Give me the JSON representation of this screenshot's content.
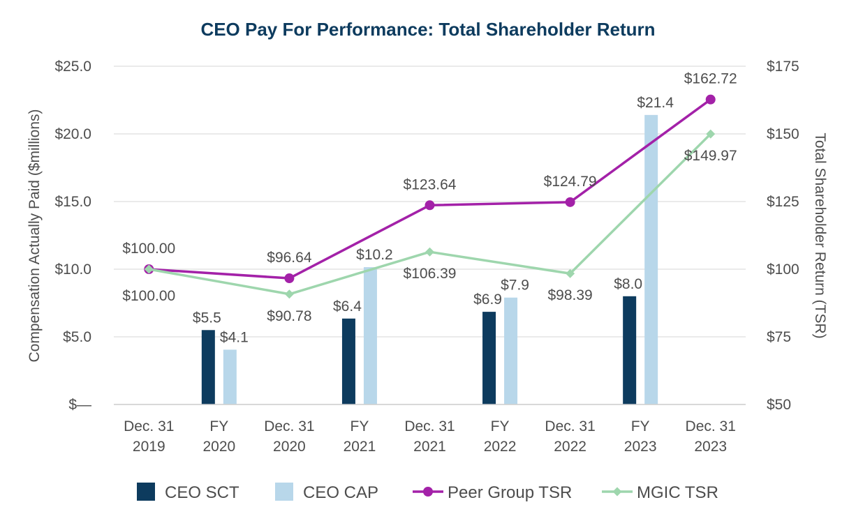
{
  "chart_data": {
    "type": "bar+line",
    "title": "CEO Pay For Performance: Total Shareholder Return",
    "ylabel_left": "Compensation Actually Paid ($millions)",
    "ylabel_right": "Total Shareholder Return (TSR)",
    "ylim_left": [
      0,
      25
    ],
    "ylim_right": [
      50,
      175
    ],
    "yticks_left": [
      "$—",
      "$5.0",
      "$10.0",
      "$15.0",
      "$20.0",
      "$25.0"
    ],
    "yticks_right": [
      "$50",
      "$75",
      "$100",
      "$125",
      "$150",
      "$175"
    ],
    "grid": true,
    "categories": [
      [
        "Dec. 31",
        "2019"
      ],
      [
        "FY",
        "2020"
      ],
      [
        "Dec. 31",
        "2020"
      ],
      [
        "FY",
        "2021"
      ],
      [
        "Dec. 31",
        "2021"
      ],
      [
        "FY",
        "2022"
      ],
      [
        "Dec. 31",
        "2022"
      ],
      [
        "FY",
        "2023"
      ],
      [
        "Dec. 31",
        "2023"
      ]
    ],
    "bar_series": [
      {
        "name": "CEO SCT",
        "color": "#0d3b5e",
        "points": [
          {
            "category_index": 1,
            "value": 5.5,
            "label": "$5.5"
          },
          {
            "category_index": 3,
            "value": 6.35,
            "label": "$6.4"
          },
          {
            "category_index": 5,
            "value": 6.85,
            "label": "$6.9"
          },
          {
            "category_index": 7,
            "value": 8.0,
            "label": "$8.0"
          }
        ]
      },
      {
        "name": "CEO CAP",
        "color": "#b8d7ea",
        "points": [
          {
            "category_index": 1,
            "value": 4.05,
            "label": "$4.1"
          },
          {
            "category_index": 3,
            "value": 10.15,
            "label": "$10.2"
          },
          {
            "category_index": 5,
            "value": 7.9,
            "label": "$7.9"
          },
          {
            "category_index": 7,
            "value": 21.4,
            "label": "$21.4"
          }
        ]
      }
    ],
    "line_series": [
      {
        "name": "Peer Group TSR",
        "color": "#a321a8",
        "marker": "circle",
        "points": [
          {
            "category_index": 0,
            "value": 100.0,
            "label": "$100.00"
          },
          {
            "category_index": 2,
            "value": 96.64,
            "label": "$96.64"
          },
          {
            "category_index": 4,
            "value": 123.64,
            "label": "$123.64"
          },
          {
            "category_index": 6,
            "value": 124.79,
            "label": "$124.79"
          },
          {
            "category_index": 8,
            "value": 162.72,
            "label": "$162.72"
          }
        ]
      },
      {
        "name": "MGIC TSR",
        "color": "#9ed6ad",
        "marker": "diamond",
        "points": [
          {
            "category_index": 0,
            "value": 100.0,
            "label": "$100.00"
          },
          {
            "category_index": 2,
            "value": 90.78,
            "label": "$90.78"
          },
          {
            "category_index": 4,
            "value": 106.39,
            "label": "$106.39"
          },
          {
            "category_index": 6,
            "value": 98.39,
            "label": "$98.39"
          },
          {
            "category_index": 8,
            "value": 149.97,
            "label": "$149.97"
          }
        ]
      }
    ],
    "legend": {
      "position": "bottom",
      "entries": [
        {
          "name": "CEO SCT",
          "kind": "bar",
          "color": "#0d3b5e"
        },
        {
          "name": "CEO CAP",
          "kind": "bar",
          "color": "#b8d7ea"
        },
        {
          "name": "Peer Group TSR",
          "kind": "line-circle",
          "color": "#a321a8"
        },
        {
          "name": "MGIC TSR",
          "kind": "line-diamond",
          "color": "#9ed6ad"
        }
      ]
    }
  }
}
